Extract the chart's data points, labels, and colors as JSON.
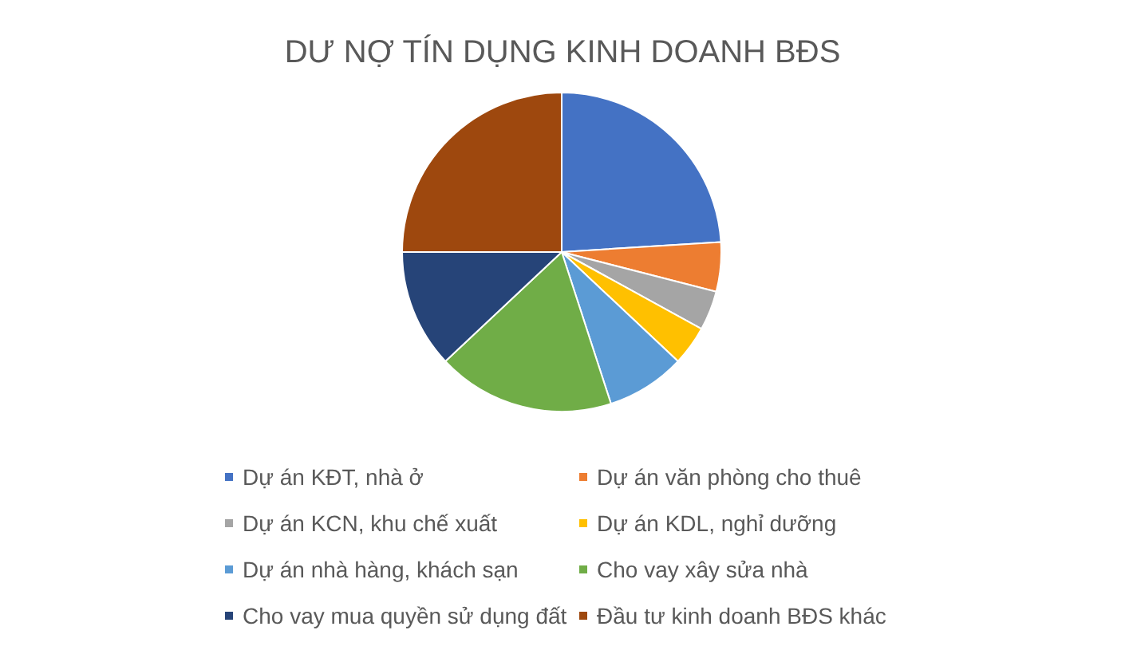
{
  "chart_data": {
    "type": "pie",
    "title": "DƯ NỢ TÍN DỤNG KINH DOANH BĐS",
    "categories": [
      "Dự án KĐT, nhà ở",
      "Dự án văn phòng cho thuê",
      "Dự án KCN, khu chế xuất",
      "Dự án KDL, nghỉ dưỡng",
      "Dự án nhà hàng, khách sạn",
      "Cho vay xây sửa nhà",
      "Cho vay mua quyền sử dụng đất",
      "Đầu tư kinh doanh BĐS khác"
    ],
    "values": [
      24,
      5,
      4,
      4,
      8,
      18,
      12,
      25
    ],
    "colors": [
      "#4472c4",
      "#ed7d31",
      "#a5a5a5",
      "#ffc000",
      "#5b9bd5",
      "#70ad47",
      "#264478",
      "#9e480e"
    ],
    "legend": "bottom"
  }
}
